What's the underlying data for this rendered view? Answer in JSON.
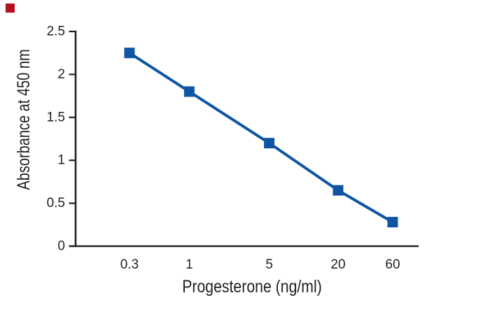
{
  "figure": {
    "background": "#ffffff",
    "corner_marker_color": "#b5101b"
  },
  "chart_data": {
    "type": "line",
    "title": "",
    "xlabel": "Progesterone (ng/ml)",
    "ylabel": "Absorbance at 450 nm",
    "x_scale": "log",
    "categories": [
      "0.3",
      "1",
      "5",
      "20",
      "60"
    ],
    "x": [
      0.3,
      1,
      5,
      20,
      60
    ],
    "series": [
      {
        "name": "Absorbance at 450 nm",
        "values": [
          2.25,
          1.8,
          1.2,
          0.65,
          0.28
        ]
      }
    ],
    "y_ticks": [
      "0",
      "0.5",
      "1",
      "1.5",
      "2",
      "2.5"
    ],
    "y_tick_values": [
      0,
      0.5,
      1,
      1.5,
      2,
      2.5
    ],
    "ylim": [
      0,
      2.5
    ],
    "grid": false,
    "legend": "none",
    "marker": "square",
    "line_color": "#0e55a3",
    "axis_color": "#231f20",
    "text_color": "#231f20"
  }
}
